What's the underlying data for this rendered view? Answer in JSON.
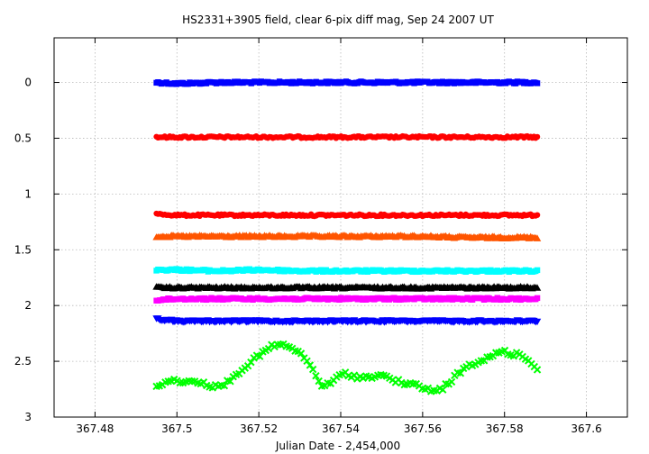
{
  "chart_data": {
    "type": "scatter",
    "title": "HS2331+3905 field, clear 6-pix diff mag, Sep 24 2007 UT",
    "xlabel": "Julian Date - 2,454,000",
    "ylabel": "",
    "xlim": [
      367.47,
      367.61
    ],
    "ylim": [
      -0.4,
      3.0
    ],
    "y_inverted": true,
    "grid": true,
    "x_ticks": [
      367.48,
      367.5,
      367.52,
      367.54,
      367.56,
      367.58,
      367.6
    ],
    "x_tick_labels": [
      "367.48",
      "367.5",
      "367.52",
      "367.54",
      "367.56",
      "367.58",
      "367.6"
    ],
    "y_ticks": [
      0,
      0.5,
      1,
      1.5,
      2,
      2.5,
      3
    ],
    "y_tick_labels": [
      "0",
      "0.5",
      "1",
      "1.5",
      "2",
      "2.5",
      "3"
    ],
    "x_range_observed": [
      367.495,
      367.588
    ],
    "series": [
      {
        "color": "#0000ff",
        "marker": "square",
        "x": [
          367.495,
          367.5,
          367.51,
          367.52,
          367.53,
          367.54,
          367.55,
          367.56,
          367.57,
          367.58,
          367.588
        ],
        "y": [
          0.0,
          0.01,
          0.0,
          0.0,
          0.0,
          0.0,
          0.0,
          0.0,
          0.0,
          0.0,
          0.0
        ]
      },
      {
        "color": "#ff0000",
        "marker": "circle",
        "x": [
          367.495,
          367.5,
          367.51,
          367.52,
          367.53,
          367.54,
          367.55,
          367.56,
          367.57,
          367.58,
          367.588
        ],
        "y": [
          0.49,
          0.49,
          0.49,
          0.49,
          0.49,
          0.49,
          0.49,
          0.49,
          0.49,
          0.49,
          0.49
        ]
      },
      {
        "color": "#ff0000",
        "marker": "circle",
        "x": [
          367.495,
          367.5,
          367.51,
          367.52,
          367.53,
          367.54,
          367.55,
          367.56,
          367.57,
          367.58,
          367.588
        ],
        "y": [
          1.18,
          1.19,
          1.19,
          1.19,
          1.19,
          1.19,
          1.19,
          1.19,
          1.19,
          1.19,
          1.19
        ]
      },
      {
        "color": "#ff5500",
        "marker": "triangle",
        "x": [
          367.495,
          367.5,
          367.51,
          367.52,
          367.53,
          367.54,
          367.55,
          367.56,
          367.57,
          367.58,
          367.588
        ],
        "y": [
          1.38,
          1.38,
          1.38,
          1.38,
          1.38,
          1.38,
          1.38,
          1.38,
          1.39,
          1.39,
          1.39
        ]
      },
      {
        "color": "#00ffff",
        "marker": "square",
        "x": [
          367.495,
          367.5,
          367.51,
          367.52,
          367.53,
          367.54,
          367.55,
          367.56,
          367.57,
          367.58,
          367.588
        ],
        "y": [
          1.68,
          1.68,
          1.69,
          1.68,
          1.69,
          1.69,
          1.69,
          1.69,
          1.69,
          1.69,
          1.69
        ]
      },
      {
        "color": "#000000",
        "marker": "triangle",
        "x": [
          367.495,
          367.5,
          367.51,
          367.52,
          367.53,
          367.54,
          367.55,
          367.56,
          367.57,
          367.58,
          367.588
        ],
        "y": [
          1.84,
          1.84,
          1.84,
          1.84,
          1.84,
          1.84,
          1.84,
          1.84,
          1.84,
          1.84,
          1.84
        ]
      },
      {
        "color": "#ff00ff",
        "marker": "square",
        "x": [
          367.495,
          367.5,
          367.51,
          367.52,
          367.53,
          367.54,
          367.55,
          367.56,
          367.57,
          367.58,
          367.588
        ],
        "y": [
          1.95,
          1.94,
          1.94,
          1.94,
          1.94,
          1.94,
          1.94,
          1.94,
          1.94,
          1.94,
          1.94
        ]
      },
      {
        "color": "#0000ff",
        "marker": "triangle-down",
        "x": [
          367.495,
          367.5,
          367.51,
          367.52,
          367.53,
          367.54,
          367.55,
          367.56,
          367.57,
          367.58,
          367.588
        ],
        "y": [
          2.12,
          2.14,
          2.14,
          2.14,
          2.14,
          2.14,
          2.14,
          2.14,
          2.14,
          2.14,
          2.14
        ]
      },
      {
        "color": "#00ff00",
        "marker": "cross",
        "x": [
          367.495,
          367.497,
          367.499,
          367.501,
          367.503,
          367.505,
          367.507,
          367.509,
          367.511,
          367.513,
          367.515,
          367.517,
          367.519,
          367.521,
          367.523,
          367.525,
          367.527,
          367.529,
          367.531,
          367.533,
          367.535,
          367.537,
          367.539,
          367.541,
          367.543,
          367.545,
          367.547,
          367.549,
          367.551,
          367.553,
          367.555,
          367.557,
          367.559,
          367.561,
          367.563,
          367.565,
          367.567,
          367.569,
          367.571,
          367.573,
          367.575,
          367.577,
          367.579,
          367.581,
          367.583,
          367.585,
          367.587,
          367.588
        ],
        "y": [
          2.72,
          2.69,
          2.67,
          2.68,
          2.69,
          2.68,
          2.7,
          2.73,
          2.72,
          2.67,
          2.6,
          2.54,
          2.48,
          2.42,
          2.37,
          2.35,
          2.36,
          2.41,
          2.46,
          2.56,
          2.71,
          2.71,
          2.65,
          2.61,
          2.63,
          2.65,
          2.64,
          2.62,
          2.64,
          2.67,
          2.69,
          2.71,
          2.72,
          2.75,
          2.77,
          2.74,
          2.67,
          2.6,
          2.55,
          2.52,
          2.49,
          2.45,
          2.4,
          2.43,
          2.44,
          2.47,
          2.52,
          2.57
        ]
      }
    ]
  }
}
